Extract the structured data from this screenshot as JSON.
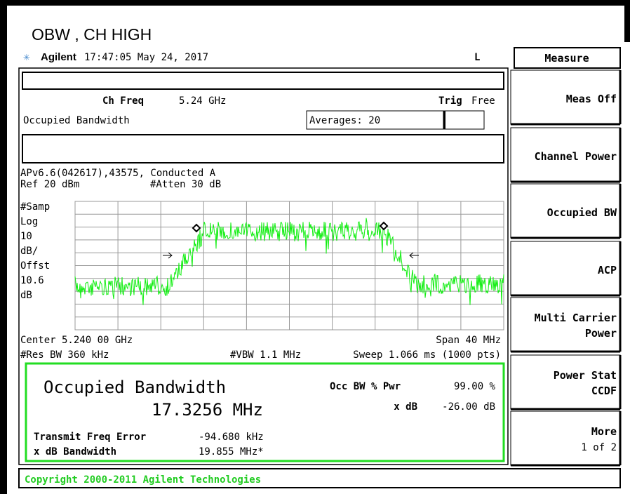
{
  "title": "OBW , CH HIGH",
  "header": {
    "brand": "Agilent",
    "timestamp": "17:47:05  May 24, 2017",
    "flag": "L"
  },
  "menu": {
    "title": "Measure",
    "softkeys": [
      [
        "Meas Off"
      ],
      [
        "Channel Power"
      ],
      [
        "Occupied BW"
      ],
      [
        "ACP"
      ],
      [
        "Multi Carrier",
        "Power"
      ],
      [
        "Power Stat",
        "CCDF"
      ],
      [
        "More",
        "1 of 2"
      ]
    ]
  },
  "screen": {
    "ch_freq_label": "Ch Freq",
    "ch_freq": "5.24 GHz",
    "trig_label": "Trig",
    "trig": "Free",
    "measurement": "Occupied Bandwidth",
    "averages": "Averages: 20",
    "info": "APv6.6(042617),43575, Conducted A",
    "ref": "Ref 20 dBm",
    "atten": "#Atten 30 dB",
    "scale_labels": [
      "#Samp",
      "Log",
      "10",
      "dB/",
      "Offst",
      "10.6",
      "dB"
    ],
    "center": "Center 5.240 00 GHz",
    "span": "Span 40 MHz",
    "res_bw": "#Res BW 360 kHz",
    "vbw": "#VBW 1.1 MHz",
    "sweep": "Sweep 1.066 ms (1000 pts)"
  },
  "results": {
    "heading": "Occupied Bandwidth",
    "obw": "17.3256 MHz",
    "occ_pwr_label": "Occ BW % Pwr",
    "occ_pwr": "99.00 %",
    "xdb_label": "x dB",
    "xdb": "-26.00 dB",
    "tfe_label": "Transmit Freq Error",
    "tfe": "-94.680 kHz",
    "xdb_bw_label": "x dB Bandwidth",
    "xdb_bw": "19.855 MHz*"
  },
  "copyright": "Copyright 2000-2011 Agilent Technologies"
}
